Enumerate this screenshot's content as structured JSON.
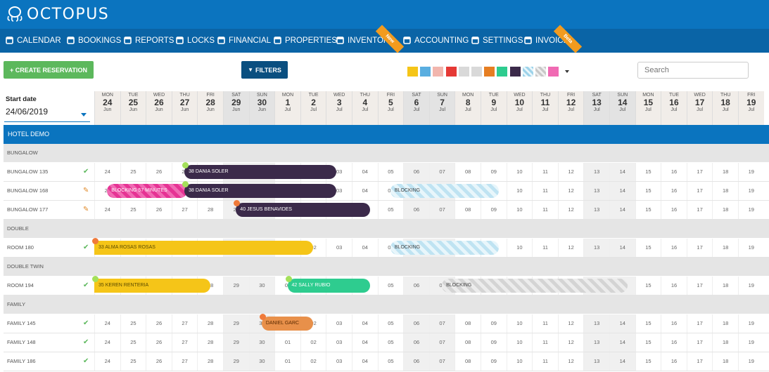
{
  "app": {
    "logo_text": "OCTOPUS"
  },
  "nav": [
    {
      "label": "CALENDAR",
      "icon": "calendar-icon"
    },
    {
      "label": "BOOKINGS",
      "icon": "search-icon"
    },
    {
      "label": "REPORTS",
      "icon": "pie-chart-icon"
    },
    {
      "label": "LOCKS",
      "icon": "lock-icon"
    },
    {
      "label": "FINANCIAL",
      "icon": "folder-icon"
    },
    {
      "label": "PROPERTIES",
      "icon": "map-icon"
    },
    {
      "label": "INVENTORY",
      "icon": "list-icon",
      "ribbon": "New"
    },
    {
      "label": "ACCOUNTING",
      "icon": "grid-icon"
    },
    {
      "label": "SETTINGS",
      "icon": "gear-icon"
    },
    {
      "label": "INVOICE",
      "icon": "document-icon",
      "ribbon": "Beta"
    }
  ],
  "toolbar": {
    "create_label": "+ CREATE RESERVATION",
    "filters_label": "FILTERS",
    "search_placeholder": "Search"
  },
  "swatches": [
    "#f5c518",
    "#5aaee0",
    "#f2b6ae",
    "#e53935",
    "#d9d9d9",
    "#d9d9d9",
    "#e67e22",
    "#2ecc8f",
    "#3b2a4a",
    "stripe-blue",
    "stripe-grey",
    "#f06ab3"
  ],
  "start_date": {
    "label": "Start date",
    "value": "24/06/2019"
  },
  "days": [
    {
      "dw": "MON",
      "dn": "24",
      "dm": "Jun"
    },
    {
      "dw": "TUE",
      "dn": "25",
      "dm": "Jun"
    },
    {
      "dw": "WED",
      "dn": "26",
      "dm": "Jun"
    },
    {
      "dw": "THU",
      "dn": "27",
      "dm": "Jun"
    },
    {
      "dw": "FRI",
      "dn": "28",
      "dm": "Jun"
    },
    {
      "dw": "SAT",
      "dn": "29",
      "dm": "Jun",
      "we": true
    },
    {
      "dw": "SUN",
      "dn": "30",
      "dm": "Jun",
      "we": true
    },
    {
      "dw": "MON",
      "dn": "1",
      "dm": "Jul"
    },
    {
      "dw": "TUE",
      "dn": "2",
      "dm": "Jul"
    },
    {
      "dw": "WED",
      "dn": "3",
      "dm": "Jul"
    },
    {
      "dw": "THU",
      "dn": "4",
      "dm": "Jul"
    },
    {
      "dw": "FRI",
      "dn": "5",
      "dm": "Jul"
    },
    {
      "dw": "SAT",
      "dn": "6",
      "dm": "Jul",
      "we": true
    },
    {
      "dw": "SUN",
      "dn": "7",
      "dm": "Jul",
      "we": true
    },
    {
      "dw": "MON",
      "dn": "8",
      "dm": "Jul"
    },
    {
      "dw": "TUE",
      "dn": "9",
      "dm": "Jul"
    },
    {
      "dw": "WED",
      "dn": "10",
      "dm": "Jul"
    },
    {
      "dw": "THU",
      "dn": "11",
      "dm": "Jul"
    },
    {
      "dw": "FRI",
      "dn": "12",
      "dm": "Jul"
    },
    {
      "dw": "SAT",
      "dn": "13",
      "dm": "Jul",
      "we": true
    },
    {
      "dw": "SUN",
      "dn": "14",
      "dm": "Jul",
      "we": true
    },
    {
      "dw": "MON",
      "dn": "15",
      "dm": "Jul"
    },
    {
      "dw": "TUE",
      "dn": "16",
      "dm": "Jul"
    },
    {
      "dw": "WED",
      "dn": "17",
      "dm": "Jul"
    },
    {
      "dw": "THU",
      "dn": "18",
      "dm": "Jul"
    },
    {
      "dw": "FRI",
      "dn": "19",
      "dm": "Jul"
    }
  ],
  "cell_labels": [
    "24",
    "25",
    "26",
    "27",
    "28",
    "29",
    "30",
    "01",
    "02",
    "03",
    "04",
    "05",
    "06",
    "07",
    "08",
    "09",
    "10",
    "11",
    "12",
    "13",
    "14",
    "15",
    "16",
    "17",
    "18",
    "19"
  ],
  "hotel": "HOTEL DEMO",
  "groups": [
    {
      "name": "BUNGALOW",
      "rooms": [
        {
          "name": "BUNGALOW 135",
          "status": "clean"
        },
        {
          "name": "BUNGALOW 168",
          "status": "dirty"
        },
        {
          "name": "BUNGALOW 177",
          "status": "dirty"
        }
      ]
    },
    {
      "name": "DOUBLE",
      "rooms": [
        {
          "name": "ROOM 180",
          "status": "clean"
        }
      ]
    },
    {
      "name": "DOUBLE TWIN",
      "rooms": [
        {
          "name": "ROOM 194",
          "status": "clean"
        }
      ]
    },
    {
      "name": "FAMILY",
      "rooms": [
        {
          "name": "FAMILY 145",
          "status": "clean"
        },
        {
          "name": "FAMILY 148",
          "status": "clean"
        },
        {
          "name": "FAMILY 186",
          "status": "clean"
        }
      ]
    }
  ],
  "reservations": [
    {
      "room": "BUNGALOW 135",
      "label": "38  DANIA SOLER",
      "start": 3.5,
      "end": 9.4,
      "color": "#3b2a4a",
      "text": "#ffffff",
      "dot": "#a4e05a"
    },
    {
      "room": "BUNGALOW 168",
      "label": "BLOCKING 57 MINUTES",
      "start": 0.5,
      "end": 3.6,
      "style": "pink"
    },
    {
      "room": "BUNGALOW 168",
      "label": "38  DANIA SOLER",
      "start": 3.5,
      "end": 9.4,
      "color": "#3b2a4a",
      "text": "#ffffff",
      "dot": "#a4e05a"
    },
    {
      "room": "BUNGALOW 168",
      "label": "BLOCKING",
      "start": 11.5,
      "end": 15.7,
      "style": "hatch-blue"
    },
    {
      "room": "BUNGALOW 177",
      "label": "40  JESUS BENAVIDES",
      "start": 5.5,
      "end": 10.7,
      "color": "#3b2a4a",
      "text": "#ffffff",
      "dot": "#f07a3a"
    },
    {
      "room": "ROOM 180",
      "label": "33   ALMA ROSAS ROSAS",
      "start": 0.0,
      "end": 8.5,
      "color": "#f5c518",
      "text": "#5a4a00",
      "dot": "#f07a3a"
    },
    {
      "room": "ROOM 180",
      "label": "BLOCKING",
      "start": 11.5,
      "end": 15.7,
      "style": "hatch-blue"
    },
    {
      "room": "ROOM 194",
      "label": "35  KEREN RENTERIA",
      "start": 0.0,
      "end": 4.5,
      "color": "#f5c518",
      "text": "#5a4a00",
      "dot": "#a4e05a"
    },
    {
      "room": "ROOM 194",
      "label": "42  SALLY RUBIO",
      "start": 7.5,
      "end": 10.7,
      "color": "#2ecc8f",
      "text": "#ffffff",
      "dot": "#a4e05a"
    },
    {
      "room": "ROOM 194",
      "label": "BLOCKING",
      "start": 13.5,
      "end": 20.7,
      "style": "hatch-grey"
    },
    {
      "room": "FAMILY 145",
      "label": "DANIEL GARC",
      "start": 6.5,
      "end": 8.5,
      "color": "#e8904a",
      "text": "#5a2a00",
      "dot": "#f07a3a"
    }
  ]
}
